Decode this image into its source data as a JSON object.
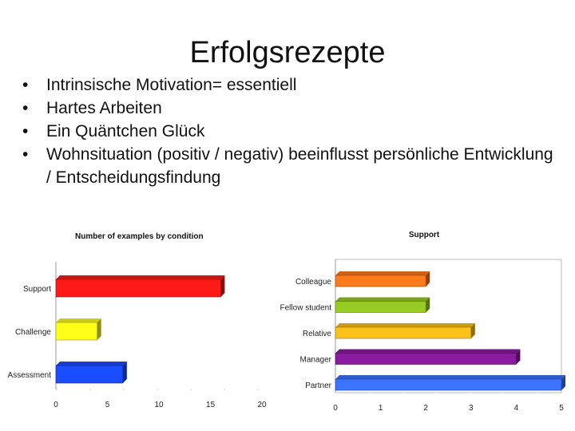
{
  "slide": {
    "title": "Erfolgsrezepte",
    "bullets": [
      "Intrinsische Motivation= essentiell",
      "Hartes Arbeiten",
      "Ein Quäntchen Glück",
      "Wohnsituation (positiv / negativ) beeinflusst persönliche Entwicklung / Entscheidungsfindung"
    ]
  },
  "chart_data": [
    {
      "type": "bar",
      "orientation": "horizontal",
      "title": "Number of examples by condition",
      "categories": [
        "Support",
        "Challenge",
        "Assessment"
      ],
      "values": [
        16,
        4,
        6.5
      ],
      "colors": [
        "#ff1a1a",
        "#ffff1a",
        "#1a4dff"
      ],
      "xlim": [
        0,
        20
      ],
      "xticks": [
        "0",
        "5",
        "10",
        "15",
        "20"
      ]
    },
    {
      "type": "bar",
      "orientation": "horizontal",
      "title": "Support",
      "categories": [
        "Colleague",
        "Fellow student",
        "Relative",
        "Manager",
        "Partner"
      ],
      "values": [
        2,
        2,
        3,
        4,
        5
      ],
      "colors": [
        "#ff7a1a",
        "#99cc22",
        "#ffc21a",
        "#8a1aa0",
        "#3d74ff"
      ],
      "xlim": [
        0,
        5
      ],
      "xticks": [
        "0",
        "1",
        "2",
        "3",
        "4",
        "5"
      ]
    }
  ]
}
